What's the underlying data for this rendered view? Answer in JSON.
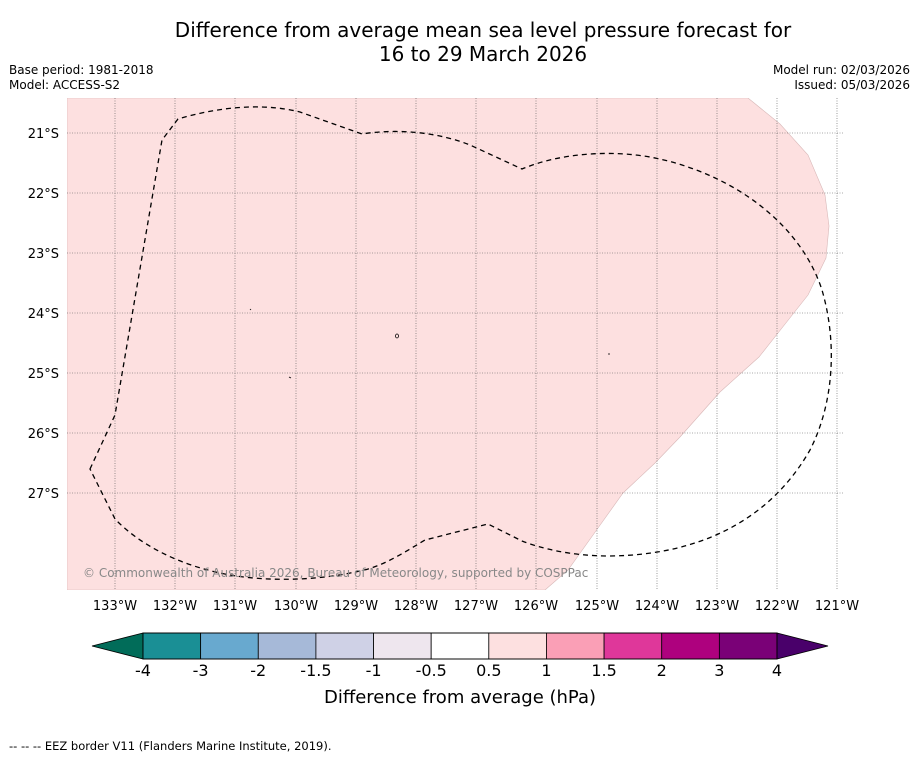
{
  "title_line1": "Difference from average mean sea level pressure forecast for",
  "title_line2": "16 to 29 March 2026",
  "meta": {
    "base_period": "Base period: 1981-2018",
    "model": "Model: ACCESS-S2",
    "model_run": "Model run: 02/03/2026",
    "issued": "Issued: 05/03/2026"
  },
  "map": {
    "lat_labels": [
      "21°S",
      "22°S",
      "23°S",
      "24°S",
      "25°S",
      "26°S",
      "27°S"
    ],
    "lon_labels": [
      "133°W",
      "132°W",
      "131°W",
      "130°W",
      "129°W",
      "128°W",
      "127°W",
      "126°W",
      "125°W",
      "124°W",
      "123°W",
      "122°W",
      "121°W"
    ],
    "copyright": "© Commonwealth of Australia 2026, Bureau of Meteorology, supported by COSPPac",
    "anomaly_fill_category": "0.5 to 1",
    "fill_color": "#fde0e0"
  },
  "colorbar": {
    "label": "Difference from average (hPa)",
    "ticks": [
      "-4",
      "-3",
      "-2",
      "-1.5",
      "-1",
      "-0.5",
      "0.5",
      "1",
      "1.5",
      "2",
      "3",
      "4"
    ],
    "colors": [
      "#1a8f95",
      "#68a9cf",
      "#a6b9d8",
      "#cfd1e6",
      "#eee6ee",
      "#ffffff",
      "#fde0e0",
      "#fa9fb6",
      "#df379a",
      "#ae017e",
      "#7a0177"
    ],
    "under_color": "#016c59",
    "over_color": "#49006a"
  },
  "footer": "-- -- -- EEZ border V11 (Flanders Marine Institute, 2019)."
}
